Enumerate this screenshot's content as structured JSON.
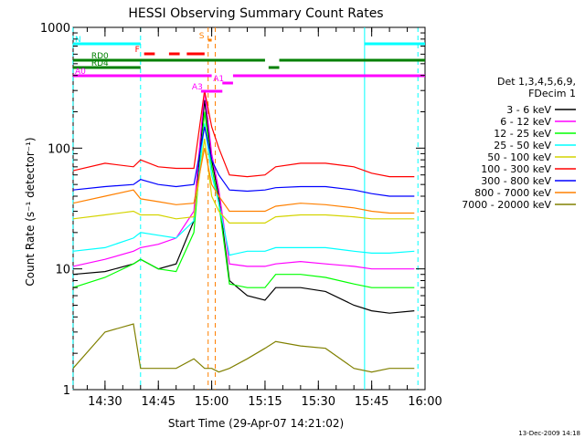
{
  "chart_data": {
    "type": "line",
    "title": "HESSI Observing Summary Count Rates",
    "xlabel": "Start Time (29-Apr-07 14:21:02)",
    "ylabel": "Count Rate (s⁻¹ detector⁻¹)",
    "timestamp": "13-Dec-2009 14:18",
    "yscale": "log",
    "ylim": [
      1,
      1000
    ],
    "xlim": [
      "14:21:02",
      "16:00"
    ],
    "x_ticks": [
      "14:30",
      "14:45",
      "15:00",
      "15:15",
      "15:30",
      "15:45",
      "16:00"
    ],
    "y_ticks": [
      "1",
      "10",
      "100",
      "1000"
    ],
    "legend": {
      "placement": "right",
      "header": [
        "Det 1,3,4,5,6,9,",
        "FDecim 1"
      ]
    },
    "series": [
      {
        "name": "3 - 6 keV",
        "color": "#000000",
        "x": [
          "14:21",
          "14:30",
          "14:38",
          "14:40",
          "14:45",
          "14:50",
          "14:55",
          "14:58",
          "15:00",
          "15:02",
          "15:05",
          "15:10",
          "15:15",
          "15:18",
          "15:25",
          "15:32",
          "15:40",
          "15:45",
          "15:50",
          "15:57"
        ],
        "y": [
          9,
          9.5,
          11,
          12,
          10,
          11,
          25,
          250,
          80,
          40,
          8,
          6,
          5.5,
          7,
          7,
          6.5,
          5,
          4.5,
          4.3,
          4.5
        ]
      },
      {
        "name": "6 - 12 keV",
        "color": "#ff00ff",
        "x": [
          "14:21",
          "14:30",
          "14:38",
          "14:40",
          "14:45",
          "14:50",
          "14:55",
          "14:58",
          "15:00",
          "15:02",
          "15:05",
          "15:10",
          "15:15",
          "15:18",
          "15:25",
          "15:32",
          "15:40",
          "15:45",
          "15:50",
          "15:57"
        ],
        "y": [
          10.5,
          12,
          14,
          15,
          16,
          18,
          30,
          300,
          90,
          45,
          11,
          10.5,
          10.5,
          11,
          11.5,
          11,
          10.5,
          10,
          10,
          10
        ]
      },
      {
        "name": "12 - 25 keV",
        "color": "#00ff00",
        "x": [
          "14:21",
          "14:30",
          "14:38",
          "14:40",
          "14:45",
          "14:50",
          "14:55",
          "14:58",
          "15:00",
          "15:02",
          "15:05",
          "15:10",
          "15:15",
          "15:18",
          "15:25",
          "15:32",
          "15:40",
          "15:45",
          "15:50",
          "15:57"
        ],
        "y": [
          7,
          8.5,
          11,
          12,
          10,
          9.5,
          20,
          200,
          70,
          35,
          7.5,
          7,
          7,
          9,
          9,
          8.5,
          7.5,
          7,
          7,
          7
        ]
      },
      {
        "name": "25 - 50 keV",
        "color": "#00ffff",
        "x": [
          "14:21",
          "14:30",
          "14:38",
          "14:40",
          "14:45",
          "14:50",
          "14:55",
          "14:58",
          "15:00",
          "15:02",
          "15:05",
          "15:10",
          "15:15",
          "15:18",
          "15:25",
          "15:32",
          "15:40",
          "15:45",
          "15:50",
          "15:57"
        ],
        "y": [
          14,
          15,
          18,
          20,
          19,
          18,
          25,
          160,
          60,
          35,
          13,
          14,
          14,
          15,
          15,
          15,
          14,
          13.5,
          13.5,
          14
        ]
      },
      {
        "name": "50 - 100 keV",
        "color": "#d4d400",
        "x": [
          "14:21",
          "14:30",
          "14:38",
          "14:40",
          "14:45",
          "14:50",
          "14:55",
          "14:58",
          "15:00",
          "15:02",
          "15:05",
          "15:10",
          "15:15",
          "15:18",
          "15:25",
          "15:32",
          "15:40",
          "15:45",
          "15:50",
          "15:57"
        ],
        "y": [
          26,
          28,
          30,
          28,
          28,
          26,
          27,
          120,
          40,
          30,
          24,
          24,
          24,
          27,
          28,
          28,
          27,
          26,
          26,
          26
        ]
      },
      {
        "name": "100 - 300 keV",
        "color": "#ff0000",
        "x": [
          "14:21",
          "14:30",
          "14:38",
          "14:40",
          "14:45",
          "14:50",
          "14:55",
          "14:58",
          "15:00",
          "15:02",
          "15:05",
          "15:10",
          "15:15",
          "15:18",
          "15:25",
          "15:32",
          "15:40",
          "15:45",
          "15:50",
          "15:57"
        ],
        "y": [
          65,
          75,
          70,
          80,
          70,
          68,
          68,
          300,
          150,
          100,
          60,
          58,
          60,
          70,
          75,
          75,
          70,
          62,
          58,
          58
        ]
      },
      {
        "name": "300 - 800 keV",
        "color": "#0000ff",
        "x": [
          "14:21",
          "14:30",
          "14:38",
          "14:40",
          "14:45",
          "14:50",
          "14:55",
          "14:58",
          "15:00",
          "15:02",
          "15:05",
          "15:10",
          "15:15",
          "15:18",
          "15:25",
          "15:32",
          "15:40",
          "15:45",
          "15:50",
          "15:57"
        ],
        "y": [
          45,
          48,
          50,
          55,
          50,
          48,
          50,
          150,
          80,
          60,
          45,
          44,
          45,
          47,
          48,
          48,
          45,
          42,
          40,
          40
        ]
      },
      {
        "name": "800 - 7000 keV",
        "color": "#ff8000",
        "x": [
          "14:21",
          "14:30",
          "14:38",
          "14:40",
          "14:45",
          "14:50",
          "14:55",
          "14:58",
          "15:00",
          "15:02",
          "15:05",
          "15:10",
          "15:15",
          "15:18",
          "15:25",
          "15:32",
          "15:40",
          "15:45",
          "15:50",
          "15:57"
        ],
        "y": [
          35,
          40,
          45,
          38,
          36,
          34,
          35,
          100,
          50,
          40,
          30,
          30,
          30,
          33,
          35,
          34,
          32,
          30,
          29,
          29
        ]
      },
      {
        "name": "7000 - 20000 keV",
        "color": "#808000",
        "x": [
          "14:21",
          "14:30",
          "14:38",
          "14:40",
          "14:45",
          "14:50",
          "14:55",
          "14:58",
          "15:00",
          "15:02",
          "15:05",
          "15:10",
          "15:15",
          "15:18",
          "15:25",
          "15:32",
          "15:40",
          "15:45",
          "15:50",
          "15:57"
        ],
        "y": [
          1.5,
          3,
          3.5,
          1.5,
          1.5,
          1.5,
          1.8,
          1.5,
          1.5,
          1.4,
          1.5,
          1.8,
          2.2,
          2.5,
          2.3,
          2.2,
          1.5,
          1.4,
          1.5,
          1.5
        ]
      }
    ],
    "flag_bars": [
      {
        "label": "N",
        "color": "#00ffff",
        "segments": [
          [
            "14:21",
            "14:40"
          ],
          [
            "15:43",
            "16:00"
          ]
        ]
      },
      {
        "label": "S",
        "color": "#ff8000",
        "segments": [
          [
            "14:59",
            "15:00"
          ]
        ]
      },
      {
        "label": "F",
        "color": "#ff0000",
        "segments": [
          [
            "14:41",
            "14:44"
          ],
          [
            "14:48",
            "14:51"
          ],
          [
            "14:53",
            "14:58"
          ]
        ]
      },
      {
        "label": "RD0",
        "color": "#008000",
        "segments": [
          [
            "14:21",
            "15:15"
          ],
          [
            "15:19",
            "16:00"
          ]
        ]
      },
      {
        "label": "RD4",
        "color": "#008000",
        "segments": [
          [
            "14:21",
            "14:40"
          ],
          [
            "15:16",
            "15:19"
          ]
        ]
      },
      {
        "label": "A0",
        "color": "#ff00ff",
        "segments": [
          [
            "14:21",
            "15:00"
          ],
          [
            "15:06",
            "16:00"
          ]
        ]
      },
      {
        "label": "A1",
        "color": "#ff00ff",
        "segments": [
          [
            "15:03",
            "15:06"
          ]
        ]
      },
      {
        "label": "A3",
        "color": "#ff00ff",
        "segments": [
          [
            "14:57",
            "15:03"
          ]
        ]
      }
    ],
    "vertical_markers": [
      {
        "x": "14:21",
        "color": "#00ffff",
        "style": "dashed"
      },
      {
        "x": "14:40",
        "color": "#00ffff",
        "style": "dashed"
      },
      {
        "x": "14:59",
        "color": "#ff8000",
        "style": "dashed"
      },
      {
        "x": "15:01",
        "color": "#ff8000",
        "style": "dashed"
      },
      {
        "x": "15:43",
        "color": "#00ffff",
        "style": "solid"
      },
      {
        "x": "15:58",
        "color": "#00ffff",
        "style": "dashed"
      }
    ]
  }
}
